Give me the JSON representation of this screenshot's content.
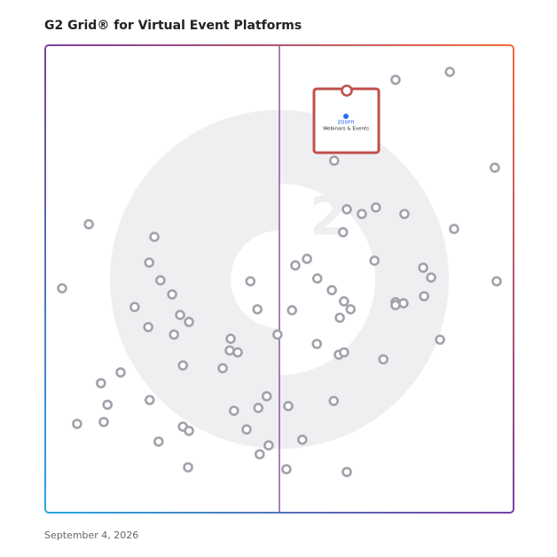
{
  "chart_data": {
    "type": "scatter",
    "title": "G2 Grid® for Virtual Event Platforms",
    "date": "September 4, 2026",
    "xlim": [
      0,
      100
    ],
    "ylim": [
      0,
      100
    ],
    "color": "#a0a3ab",
    "x": [
      74.8,
      86.4,
      61.7,
      96.0,
      9.3,
      23.3,
      64.4,
      67.6,
      70.6,
      76.7,
      63.6,
      87.3,
      22.2,
      53.4,
      55.9,
      70.3,
      80.7,
      82.4,
      24.6,
      43.8,
      58.1,
      96.4,
      3.6,
      27.1,
      61.2,
      63.8,
      80.9,
      74.8,
      76.5,
      74.8,
      19.1,
      45.3,
      52.7,
      65.2,
      62.9,
      28.8,
      30.7,
      22.0,
      27.5,
      49.6,
      39.6,
      39.4,
      41.1,
      58.0,
      62.7,
      63.8,
      84.3,
      72.2,
      29.4,
      37.9,
      16.1,
      11.9,
      22.3,
      13.3,
      47.3,
      61.6,
      45.5,
      51.9,
      40.3,
      6.8,
      12.5,
      29.4,
      30.7,
      43.0,
      24.2,
      54.9,
      47.7,
      45.8,
      30.5,
      51.5,
      64.4
    ],
    "values": [
      92.6,
      94.3,
      75.3,
      73.8,
      61.7,
      59.0,
      64.9,
      63.9,
      65.3,
      63.9,
      60.0,
      60.7,
      53.5,
      52.9,
      54.3,
      53.9,
      52.4,
      50.3,
      49.7,
      49.5,
      50.1,
      49.5,
      48.0,
      46.7,
      47.6,
      45.2,
      46.3,
      45.0,
      44.8,
      44.4,
      44.0,
      43.5,
      43.3,
      43.5,
      41.7,
      42.3,
      40.8,
      39.7,
      38.1,
      38.1,
      37.2,
      34.7,
      34.3,
      36.1,
      33.8,
      34.3,
      37.0,
      32.8,
      31.5,
      30.9,
      30.0,
      27.7,
      24.1,
      23.1,
      24.9,
      23.9,
      22.4,
      22.8,
      21.8,
      19.0,
      19.4,
      18.4,
      17.5,
      17.8,
      15.2,
      15.6,
      14.4,
      12.5,
      9.7,
      9.3,
      8.7
    ],
    "highlight": {
      "logo": "zoom",
      "label": "Webinars & Events",
      "x": 64.4,
      "y": 90.3,
      "color": "#c0504d"
    }
  }
}
